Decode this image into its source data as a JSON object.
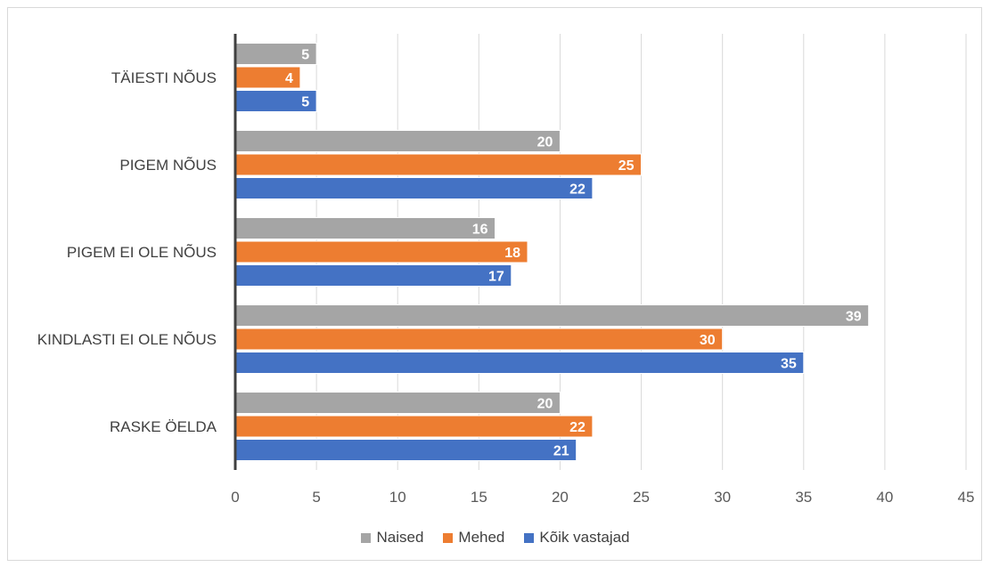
{
  "chart_data": {
    "type": "bar",
    "orientation": "horizontal",
    "categories": [
      "TÄIESTI NÕUS",
      "PIGEM NÕUS",
      "PIGEM EI OLE NÕUS",
      "KINDLASTI EI OLE NÕUS",
      "RASKE ÖELDA"
    ],
    "series": [
      {
        "name": "Naised",
        "color": "#a5a5a5",
        "values": [
          5,
          20,
          16,
          39,
          20
        ]
      },
      {
        "name": "Mehed",
        "color": "#ed7d31",
        "values": [
          4,
          25,
          18,
          30,
          22
        ]
      },
      {
        "name": "Kõik vastajad",
        "color": "#4472c4",
        "values": [
          5,
          22,
          17,
          35,
          21
        ]
      }
    ],
    "xlim": [
      0,
      45
    ],
    "xticks": [
      0,
      5,
      10,
      15,
      20,
      25,
      30,
      35,
      40,
      45
    ],
    "grid": true,
    "legend": "bottom",
    "title": "",
    "xlabel": "",
    "ylabel": ""
  }
}
